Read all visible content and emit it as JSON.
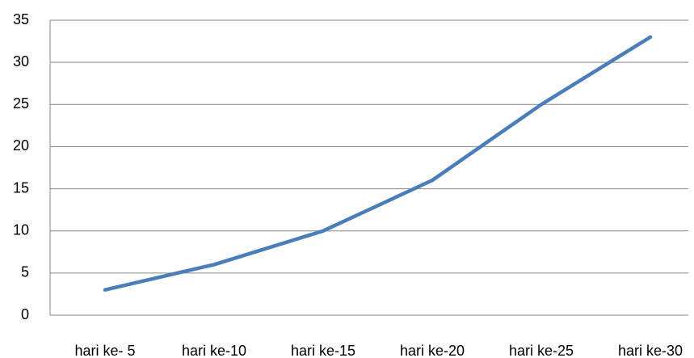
{
  "chart_data": {
    "type": "line",
    "categories": [
      "hari ke- 5",
      "hari ke-10",
      "hari ke-15",
      "hari ke-20",
      "hari ke-25",
      "hari ke-30"
    ],
    "series": [
      {
        "name": "",
        "color": "#4a7ebb",
        "values": [
          3,
          6,
          10,
          16,
          25,
          33
        ]
      }
    ],
    "ylim": [
      0,
      35
    ],
    "yticks": [
      0,
      5,
      10,
      15,
      20,
      25,
      30,
      35
    ],
    "grid": true
  }
}
